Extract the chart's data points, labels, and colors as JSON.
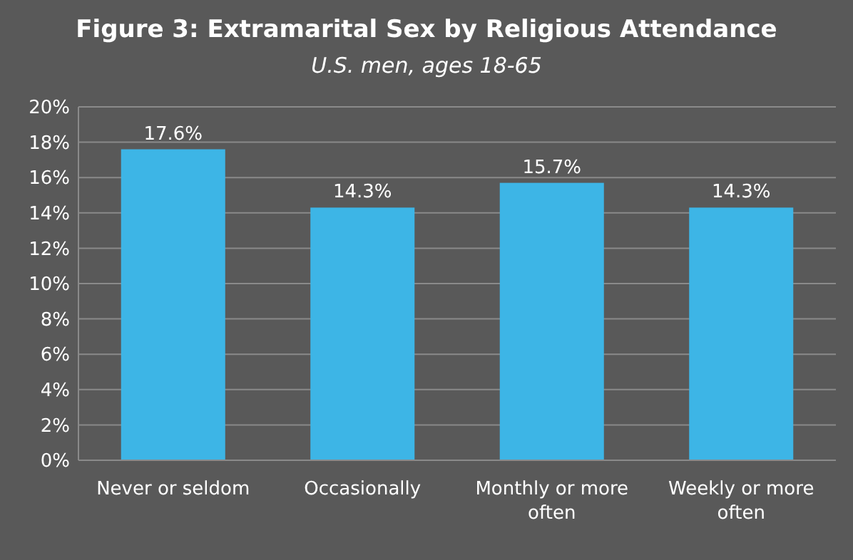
{
  "chart_data": {
    "type": "bar",
    "title": "Figure 3: Extramarital Sex by Religious Attendance",
    "subtitle": "U.S. men, ages 18-65",
    "categories": [
      "Never or seldom",
      "Occasionally",
      "Monthly or more often",
      "Weekly or more often"
    ],
    "values": [
      17.6,
      14.3,
      15.7,
      14.3
    ],
    "value_labels": [
      "17.6%",
      "14.3%",
      "15.7%",
      "14.3%"
    ],
    "color": "#3db5e6",
    "ylim": [
      0,
      20
    ],
    "yticks": [
      {
        "value": 0,
        "label": "0%"
      },
      {
        "value": 2,
        "label": "2%"
      },
      {
        "value": 4,
        "label": "4%"
      },
      {
        "value": 6,
        "label": "6%"
      },
      {
        "value": 8,
        "label": "8%"
      },
      {
        "value": 10,
        "label": "10%"
      },
      {
        "value": 12,
        "label": "12%"
      },
      {
        "value": 14,
        "label": "14%"
      },
      {
        "value": 16,
        "label": "16%"
      },
      {
        "value": 18,
        "label": "18%"
      },
      {
        "value": 20,
        "label": "20%"
      }
    ],
    "grid": "y"
  }
}
